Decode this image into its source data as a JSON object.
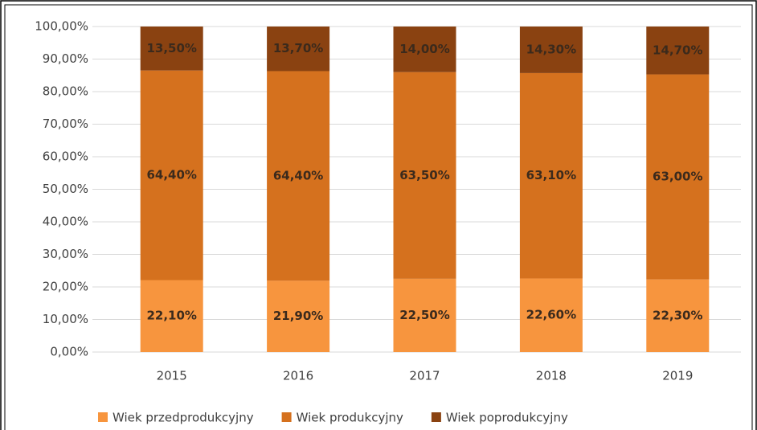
{
  "chart_data": {
    "type": "stacked_bar",
    "categories": [
      "2015",
      "2016",
      "2017",
      "2018",
      "2019"
    ],
    "series": [
      {
        "name": "Wiek przedprodukcyjny",
        "color": "#f7953e",
        "values": [
          22.1,
          21.9,
          22.5,
          22.6,
          22.3
        ],
        "value_labels": [
          "22,10%",
          "21,90%",
          "22,50%",
          "22,60%",
          "22,30%"
        ]
      },
      {
        "name": "Wiek produkcyjny",
        "color": "#d5711e",
        "values": [
          64.4,
          64.4,
          63.5,
          63.1,
          63.0
        ],
        "value_labels": [
          "64,40%",
          "64,40%",
          "63,50%",
          "63,10%",
          "63,00%"
        ]
      },
      {
        "name": "Wiek poprodukcyjny",
        "color": "#8a4211",
        "values": [
          13.5,
          13.7,
          14.0,
          14.3,
          14.7
        ],
        "value_labels": [
          "13,50%",
          "13,70%",
          "14,00%",
          "14,30%",
          "14,70%"
        ]
      }
    ],
    "ylim": [
      0,
      100
    ],
    "yticks": [
      {
        "value": 0,
        "label": "0,00%"
      },
      {
        "value": 10,
        "label": "10,00%"
      },
      {
        "value": 20,
        "label": "20,00%"
      },
      {
        "value": 30,
        "label": "30,00%"
      },
      {
        "value": 40,
        "label": "40,00%"
      },
      {
        "value": 50,
        "label": "50,00%"
      },
      {
        "value": 60,
        "label": "60,00%"
      },
      {
        "value": 70,
        "label": "70,00%"
      },
      {
        "value": 80,
        "label": "80,00%"
      },
      {
        "value": 90,
        "label": "90,00%"
      },
      {
        "value": 100,
        "label": "100,00%"
      }
    ],
    "grid": true,
    "legend": "bottom"
  }
}
